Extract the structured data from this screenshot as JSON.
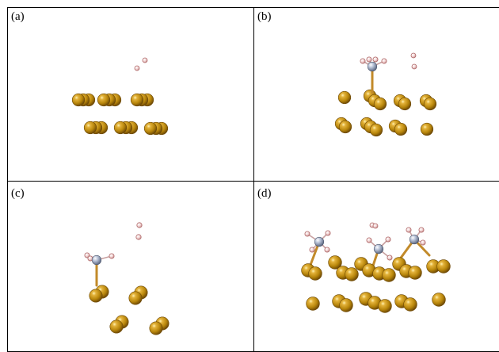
{
  "colors": {
    "gold_atom": "#b8860b",
    "gold_highlight": "#f6d36b",
    "gold_shadow": "#6f4a06",
    "nitrogen_atom": "#a8b4cc",
    "hydrogen_atom": "#f3d6d6",
    "hydrogen_edge": "#b06a6a",
    "bond_color": "#c28a2a",
    "border": "#000000"
  },
  "panels": [
    {
      "id": "a",
      "label": "(a)"
    },
    {
      "id": "b",
      "label": "(b)"
    },
    {
      "id": "c",
      "label": "(c)"
    },
    {
      "id": "d",
      "label": "(d)"
    }
  ]
}
